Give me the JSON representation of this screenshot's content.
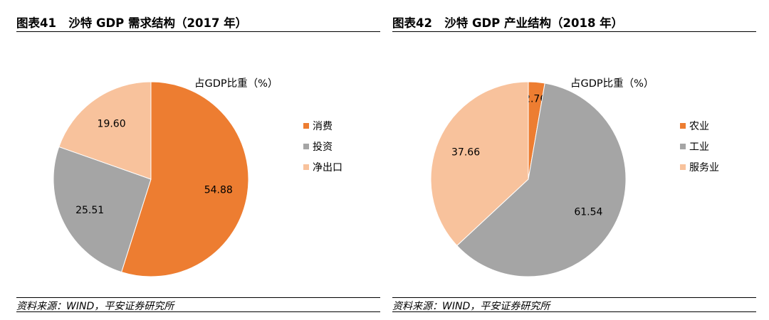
{
  "panels": [
    {
      "title": "图表41   沙特 GDP 需求结构（2017 年）",
      "source": "资料来源：WIND，平安证券研究所",
      "chart_data": {
        "type": "pie",
        "title": "占GDP比重（%）",
        "slices": [
          {
            "name": "消费",
            "value": 54.88,
            "label": "54.88",
            "color": "#ED7D31"
          },
          {
            "name": "投资",
            "value": 25.51,
            "label": "25.51",
            "color": "#A5A5A5"
          },
          {
            "name": "净出口",
            "value": 19.6,
            "label": "19.60",
            "color": "#F8C29C"
          }
        ],
        "legend": "right"
      }
    },
    {
      "title": "图表42   沙特 GDP 产业结构（2018 年）",
      "source": "资料来源：WIND，平安证券研究所",
      "chart_data": {
        "type": "pie",
        "title": "占GDP比重（%）",
        "slices": [
          {
            "name": "农业",
            "value": 2.76,
            "label": "2.76",
            "color": "#ED7D31"
          },
          {
            "name": "工业",
            "value": 61.54,
            "label": "61.54",
            "color": "#A5A5A5"
          },
          {
            "name": "服务业",
            "value": 37.66,
            "label": "37.66",
            "color": "#F8C29C"
          }
        ],
        "legend": "right"
      }
    }
  ]
}
